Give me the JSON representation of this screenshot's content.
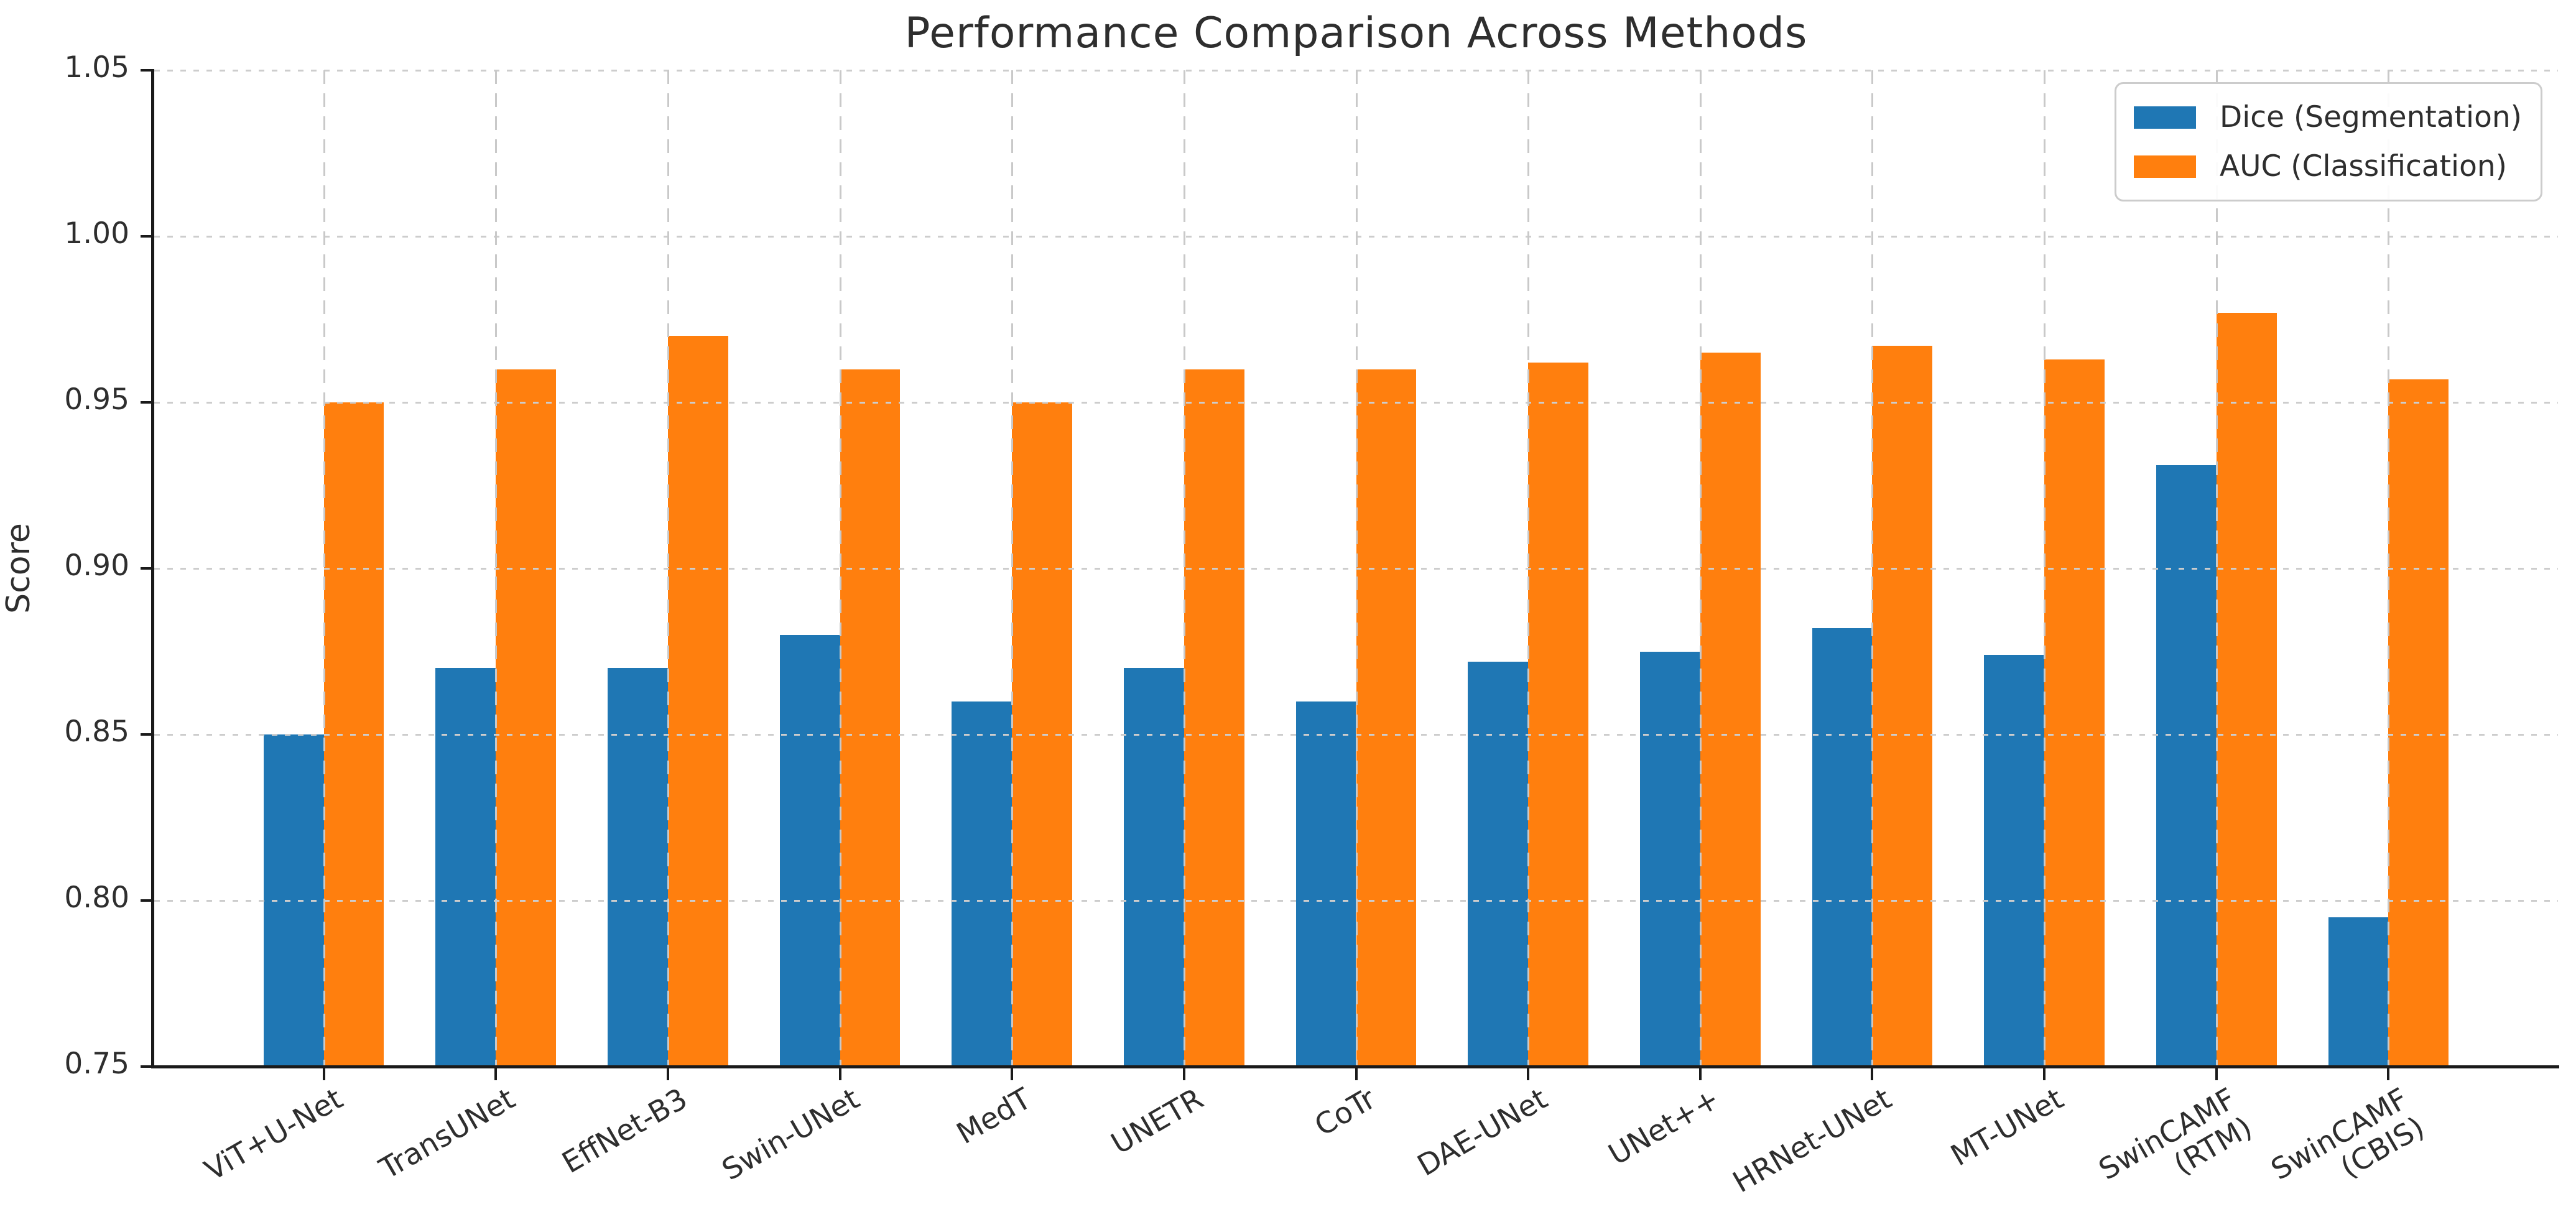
{
  "chart_data": {
    "type": "bar",
    "title": "Performance Comparison Across Methods",
    "ylabel": "Score",
    "xlabel": "",
    "categories": [
      "ViT+U-Net",
      "TransUNet",
      "EffNet-B3",
      "Swin-UNet",
      "MedT",
      "UNETR",
      "CoTr",
      "DAE-UNet",
      "UNet++",
      "HRNet-UNet",
      "MT-UNet",
      "SwinCAMF\n(RTM)",
      "SwinCAMF\n(CBIS)"
    ],
    "series": [
      {
        "name": "Dice (Segmentation)",
        "color": "#1f77b4",
        "values": [
          0.85,
          0.87,
          0.87,
          0.88,
          0.86,
          0.87,
          0.86,
          0.872,
          0.875,
          0.882,
          0.874,
          0.931,
          0.795
        ]
      },
      {
        "name": "AUC (Classification)",
        "color": "#ff7f0e",
        "values": [
          0.95,
          0.96,
          0.97,
          0.96,
          0.95,
          0.96,
          0.96,
          0.962,
          0.965,
          0.967,
          0.963,
          0.977,
          0.957
        ]
      }
    ],
    "ylim": [
      0.75,
      1.05
    ],
    "yticks": [
      "0.75",
      "0.80",
      "0.85",
      "0.90",
      "0.95",
      "1.00",
      "1.05"
    ],
    "grid": "dashed, both axes, drawn above bars",
    "legend_position": "upper right",
    "bar_width_fraction": 0.35,
    "text_color": "#2e2e2e",
    "axis_color": "#1a1a1a",
    "grid_color": "#cccccc"
  }
}
